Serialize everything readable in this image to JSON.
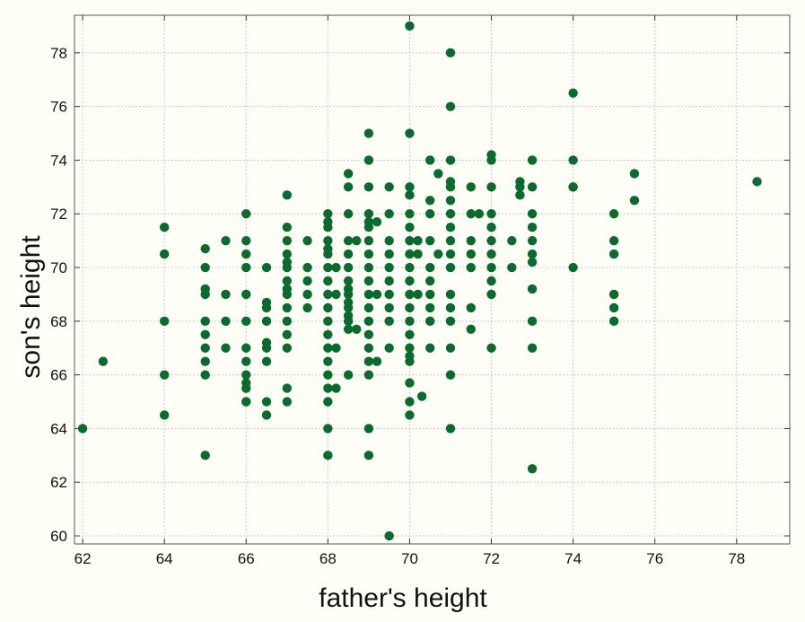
{
  "chart_data": {
    "type": "scatter",
    "title": "",
    "xlabel": "father's height",
    "ylabel": "son's height",
    "xlim": [
      61.8,
      79.3
    ],
    "ylim": [
      59.7,
      79.4
    ],
    "xticks": [
      62,
      64,
      66,
      68,
      70,
      72,
      74,
      76,
      78
    ],
    "yticks": [
      60,
      62,
      64,
      66,
      68,
      70,
      72,
      74,
      76,
      78
    ],
    "grid": true,
    "point_color": "#0a6b2f",
    "background_color": "#fffff8",
    "points": [
      [
        62,
        64
      ],
      [
        62.5,
        66.5
      ],
      [
        64,
        71.5
      ],
      [
        64,
        70.5
      ],
      [
        64,
        68
      ],
      [
        64,
        66
      ],
      [
        64,
        64.5
      ],
      [
        65,
        70.7
      ],
      [
        65,
        70
      ],
      [
        65,
        69.2
      ],
      [
        65,
        69
      ],
      [
        65,
        68
      ],
      [
        65,
        67.5
      ],
      [
        65,
        67
      ],
      [
        65,
        66.5
      ],
      [
        65,
        66
      ],
      [
        65,
        63
      ],
      [
        65.5,
        71
      ],
      [
        65.5,
        69
      ],
      [
        65.5,
        68
      ],
      [
        65.5,
        67
      ],
      [
        66,
        72
      ],
      [
        66,
        71
      ],
      [
        66,
        70.5
      ],
      [
        66,
        70
      ],
      [
        66,
        69
      ],
      [
        66,
        68
      ],
      [
        66,
        67
      ],
      [
        66,
        66.5
      ],
      [
        66,
        66
      ],
      [
        66,
        65.7
      ],
      [
        66,
        65.5
      ],
      [
        66,
        65
      ],
      [
        66,
        65
      ],
      [
        66.5,
        70
      ],
      [
        66.5,
        68.7
      ],
      [
        66.5,
        68.5
      ],
      [
        66.5,
        68
      ],
      [
        66.5,
        67.2
      ],
      [
        66.5,
        67
      ],
      [
        66.5,
        66.5
      ],
      [
        66.5,
        65
      ],
      [
        66.5,
        64.5
      ],
      [
        67,
        72.7
      ],
      [
        67,
        71.5
      ],
      [
        67,
        71
      ],
      [
        67,
        70.5
      ],
      [
        67,
        70.2
      ],
      [
        67,
        70
      ],
      [
        67,
        69.5
      ],
      [
        67,
        69.2
      ],
      [
        67,
        69
      ],
      [
        67,
        68.5
      ],
      [
        67,
        68
      ],
      [
        67,
        67.5
      ],
      [
        67,
        67
      ],
      [
        67,
        65.5
      ],
      [
        67,
        65
      ],
      [
        67.5,
        71
      ],
      [
        67.5,
        70
      ],
      [
        67.5,
        69.5
      ],
      [
        67.5,
        69
      ],
      [
        67.5,
        68.5
      ],
      [
        68,
        72
      ],
      [
        68,
        71.7
      ],
      [
        68,
        71.5
      ],
      [
        68,
        71
      ],
      [
        68,
        70.7
      ],
      [
        68,
        70.5
      ],
      [
        68,
        70
      ],
      [
        68,
        69.5
      ],
      [
        68,
        69
      ],
      [
        68,
        68.5
      ],
      [
        68,
        68
      ],
      [
        68,
        67.5
      ],
      [
        68,
        67
      ],
      [
        68,
        66.5
      ],
      [
        68,
        66
      ],
      [
        68,
        65.5
      ],
      [
        68,
        65
      ],
      [
        68,
        64
      ],
      [
        68,
        63
      ],
      [
        68.2,
        70
      ],
      [
        68.2,
        69
      ],
      [
        68.2,
        67
      ],
      [
        68.2,
        65.5
      ],
      [
        68.5,
        73.5
      ],
      [
        68.5,
        73
      ],
      [
        68.5,
        72
      ],
      [
        68.5,
        71
      ],
      [
        68.5,
        70.5
      ],
      [
        68.5,
        70
      ],
      [
        68.5,
        69.5
      ],
      [
        68.5,
        69.2
      ],
      [
        68.5,
        69
      ],
      [
        68.5,
        68.7
      ],
      [
        68.5,
        68.5
      ],
      [
        68.5,
        68.2
      ],
      [
        68.5,
        68
      ],
      [
        68.5,
        67.7
      ],
      [
        68.5,
        66
      ],
      [
        68.7,
        71
      ],
      [
        68.7,
        67.7
      ],
      [
        69,
        75
      ],
      [
        69,
        74
      ],
      [
        69,
        73
      ],
      [
        69,
        72
      ],
      [
        69,
        71.7
      ],
      [
        69,
        71.5
      ],
      [
        69,
        71
      ],
      [
        69,
        70.5
      ],
      [
        69,
        70
      ],
      [
        69,
        69.5
      ],
      [
        69,
        69
      ],
      [
        69,
        68.5
      ],
      [
        69,
        68
      ],
      [
        69,
        67.5
      ],
      [
        69,
        67
      ],
      [
        69,
        66.5
      ],
      [
        69,
        66
      ],
      [
        69,
        64
      ],
      [
        69,
        63
      ],
      [
        69.2,
        71.7
      ],
      [
        69.2,
        69
      ],
      [
        69.2,
        66.5
      ],
      [
        69.5,
        73
      ],
      [
        69.5,
        72
      ],
      [
        69.5,
        71
      ],
      [
        69.5,
        70.5
      ],
      [
        69.5,
        70
      ],
      [
        69.5,
        69.5
      ],
      [
        69.5,
        69
      ],
      [
        69.5,
        68.5
      ],
      [
        69.5,
        68
      ],
      [
        69.5,
        67
      ],
      [
        69.5,
        60
      ],
      [
        70,
        75
      ],
      [
        70,
        73
      ],
      [
        70,
        72.7
      ],
      [
        70,
        72
      ],
      [
        70,
        71.5
      ],
      [
        70,
        71
      ],
      [
        70,
        70.5
      ],
      [
        70,
        70
      ],
      [
        70,
        69.5
      ],
      [
        70,
        69
      ],
      [
        70,
        68.5
      ],
      [
        70,
        68
      ],
      [
        70,
        67.5
      ],
      [
        70,
        67
      ],
      [
        70,
        66.7
      ],
      [
        70,
        66.5
      ],
      [
        70,
        65.7
      ],
      [
        70,
        65
      ],
      [
        70,
        64.5
      ],
      [
        70,
        79
      ],
      [
        70.2,
        71
      ],
      [
        70.2,
        70.5
      ],
      [
        70.2,
        69
      ],
      [
        70.3,
        65.2
      ],
      [
        70.5,
        74
      ],
      [
        70.5,
        72.5
      ],
      [
        70.5,
        72
      ],
      [
        70.5,
        71
      ],
      [
        70.5,
        70
      ],
      [
        70.5,
        69.5
      ],
      [
        70.5,
        69
      ],
      [
        70.5,
        68.5
      ],
      [
        70.5,
        68
      ],
      [
        70.5,
        67
      ],
      [
        70.7,
        73.5
      ],
      [
        70.7,
        70.5
      ],
      [
        71,
        78
      ],
      [
        71,
        76
      ],
      [
        71,
        74
      ],
      [
        71,
        73.2
      ],
      [
        71,
        73
      ],
      [
        71,
        72.5
      ],
      [
        71,
        72
      ],
      [
        71,
        71.5
      ],
      [
        71,
        71
      ],
      [
        71,
        70.5
      ],
      [
        71,
        70
      ],
      [
        71,
        69
      ],
      [
        71,
        68.5
      ],
      [
        71,
        68
      ],
      [
        71,
        67
      ],
      [
        71,
        66
      ],
      [
        71,
        64
      ],
      [
        71.5,
        73
      ],
      [
        71.5,
        72
      ],
      [
        71.5,
        71
      ],
      [
        71.5,
        70.5
      ],
      [
        71.5,
        70
      ],
      [
        71.5,
        68.5
      ],
      [
        71.5,
        67.7
      ],
      [
        71.7,
        72
      ],
      [
        72,
        74.2
      ],
      [
        72,
        74
      ],
      [
        72,
        73
      ],
      [
        72,
        72
      ],
      [
        72,
        71.5
      ],
      [
        72,
        71
      ],
      [
        72,
        70.5
      ],
      [
        72,
        70
      ],
      [
        72,
        69.5
      ],
      [
        72,
        69
      ],
      [
        72,
        67
      ],
      [
        72.5,
        71
      ],
      [
        72.5,
        70
      ],
      [
        72.7,
        73.2
      ],
      [
        72.7,
        73
      ],
      [
        72.7,
        72.7
      ],
      [
        73,
        74
      ],
      [
        73,
        73
      ],
      [
        73,
        72
      ],
      [
        73,
        71.5
      ],
      [
        73,
        71
      ],
      [
        73,
        70.5
      ],
      [
        73,
        70.2
      ],
      [
        73,
        69.2
      ],
      [
        73,
        68
      ],
      [
        73,
        67
      ],
      [
        73,
        62.5
      ],
      [
        74,
        76.5
      ],
      [
        74,
        74
      ],
      [
        74,
        73
      ],
      [
        74,
        73
      ],
      [
        74,
        70
      ],
      [
        75,
        72
      ],
      [
        75,
        71
      ],
      [
        75,
        70.5
      ],
      [
        75,
        69
      ],
      [
        75,
        68.5
      ],
      [
        75,
        68
      ],
      [
        75.5,
        73.5
      ],
      [
        75.5,
        72.5
      ],
      [
        78.5,
        73.2
      ]
    ]
  }
}
